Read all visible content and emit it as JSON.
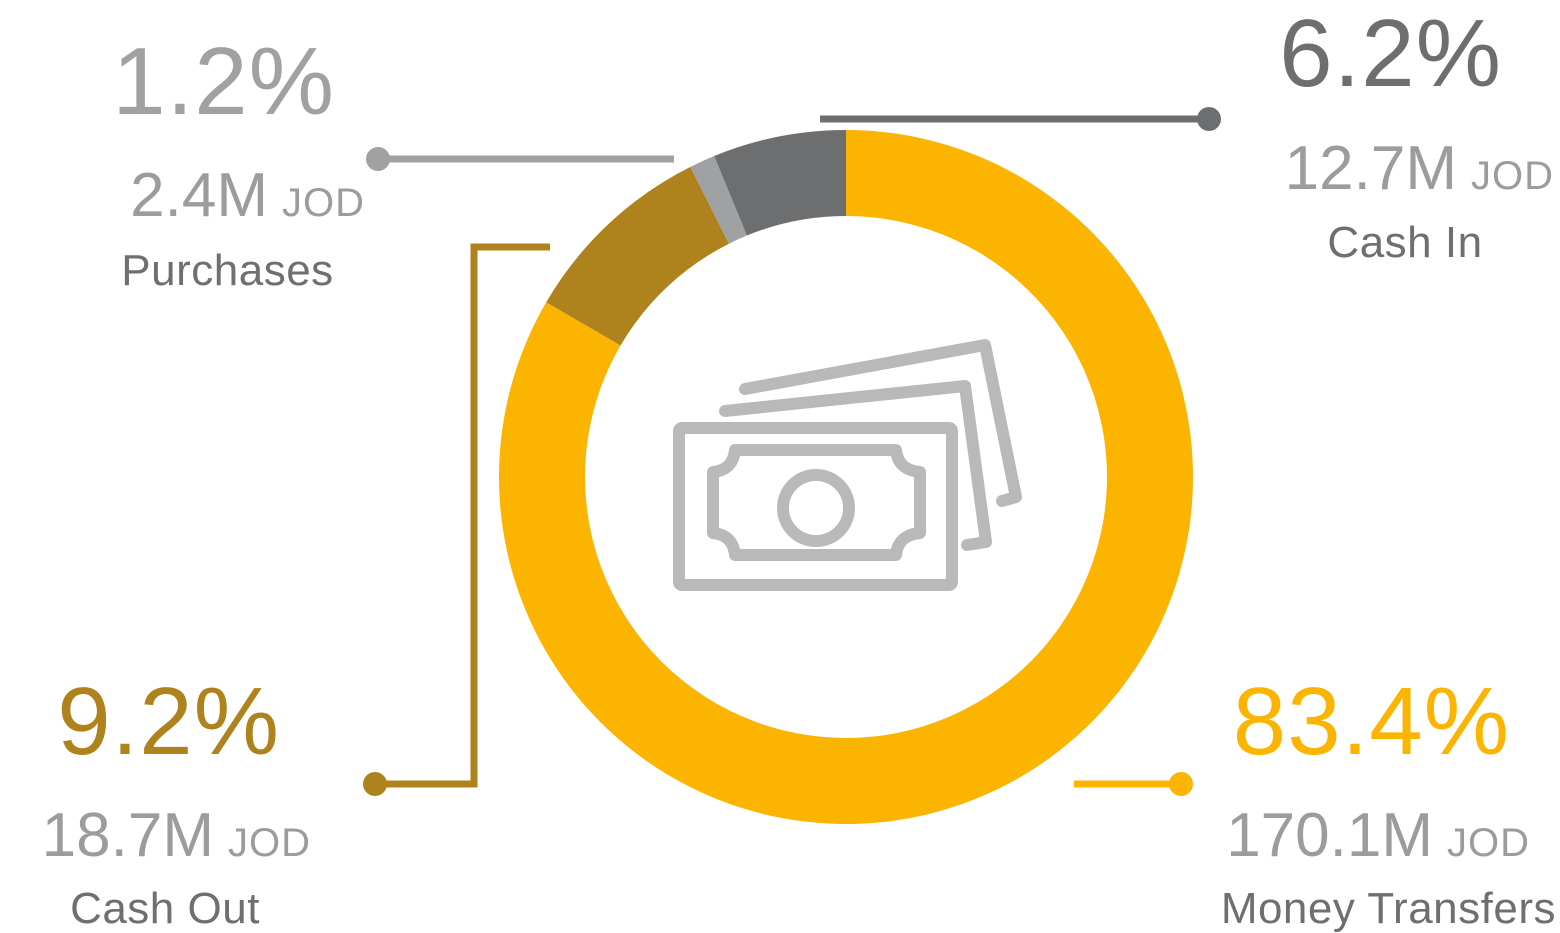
{
  "chart_data": {
    "type": "pie",
    "style": "donut",
    "center_icon": "banknotes-icon",
    "unit": "JOD",
    "slices": [
      {
        "category": "Money Transfers",
        "percent": "83.4%",
        "value": 83.4,
        "amount": "170.1M",
        "color": "#FBB400"
      },
      {
        "category": "Cash Out",
        "percent": "9.2%",
        "value": 9.2,
        "amount": "18.7M",
        "color": "#AE831D"
      },
      {
        "category": "Purchases",
        "percent": "1.2%",
        "value": 1.2,
        "amount": "2.4M",
        "color": "#A0A1A3"
      },
      {
        "category": "Cash In",
        "percent": "6.2%",
        "value": 6.2,
        "amount": "12.7M",
        "color": "#6D6E70"
      }
    ]
  },
  "colors": {
    "icon": "#B8B9BA",
    "amount_text": "#9B9C9E",
    "name_text": "#6E6F71"
  }
}
